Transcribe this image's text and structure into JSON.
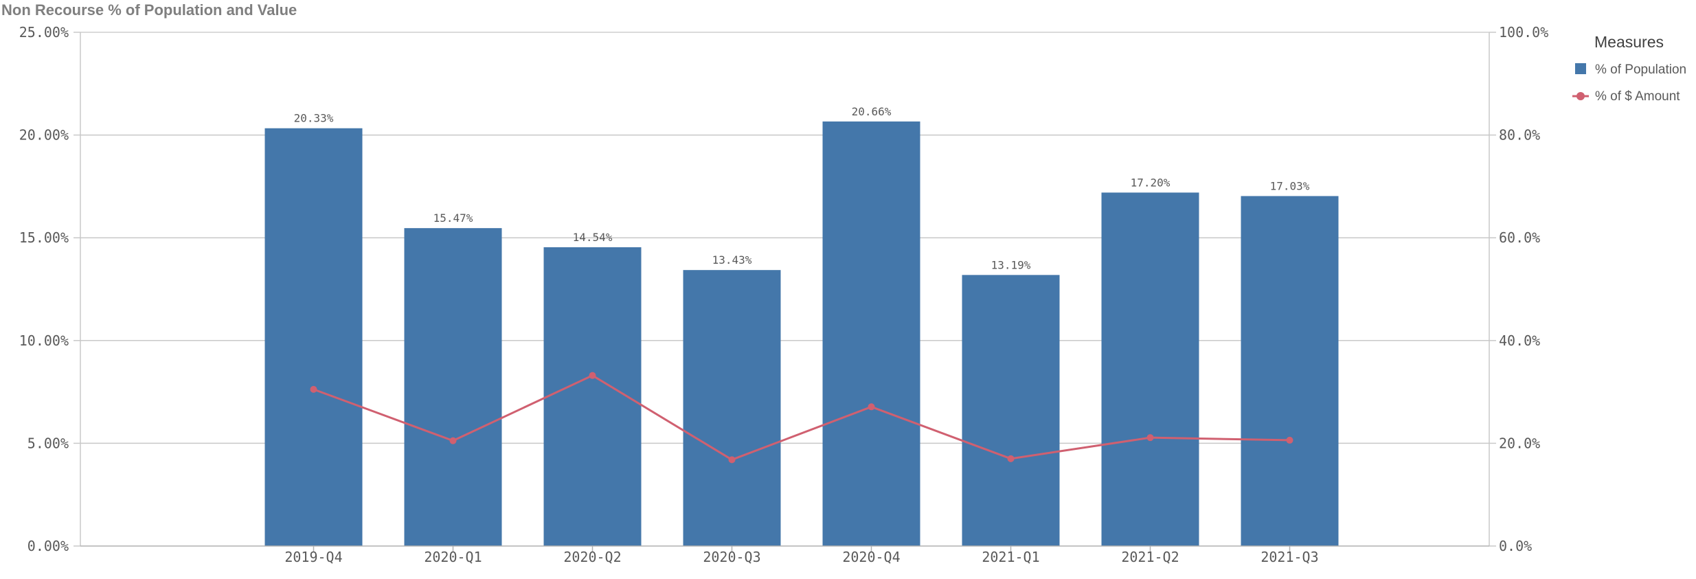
{
  "title": "Non Recourse % of Population and Value",
  "chart_data": {
    "type": "bar",
    "categories": [
      "2019-Q4",
      "2020-Q1",
      "2020-Q2",
      "2020-Q3",
      "2020-Q4",
      "2021-Q1",
      "2021-Q2",
      "2021-Q3"
    ],
    "series": [
      {
        "name": "% of Population",
        "type": "bar",
        "axis": "left",
        "color": "#4477aa",
        "values": [
          20.33,
          15.47,
          14.54,
          13.43,
          20.66,
          13.19,
          17.2,
          17.03
        ],
        "labels": [
          "20.33%",
          "15.47%",
          "14.54%",
          "13.43%",
          "20.66%",
          "13.19%",
          "17.20%",
          "17.03%"
        ]
      },
      {
        "name": "% of $ Amount",
        "type": "line",
        "axis": "right",
        "color": "#d06070",
        "values": [
          30.5,
          20.5,
          33.2,
          16.8,
          27.1,
          17.0,
          21.1,
          20.6
        ]
      }
    ],
    "y_left": {
      "ylim": [
        0,
        25
      ],
      "ticks": [
        0,
        5,
        10,
        15,
        20,
        25
      ],
      "tick_labels": [
        "0.00%",
        "5.00%",
        "10.00%",
        "15.00%",
        "20.00%",
        "25.00%"
      ]
    },
    "y_right": {
      "ylim": [
        0,
        100
      ],
      "ticks": [
        0,
        20,
        40,
        60,
        80,
        100
      ],
      "tick_labels": [
        "0.0%",
        "20.0%",
        "40.0%",
        "60.0%",
        "80.0%",
        "100.0%"
      ]
    },
    "grid": true,
    "legend": {
      "title": "Measures",
      "placement": "right"
    }
  }
}
